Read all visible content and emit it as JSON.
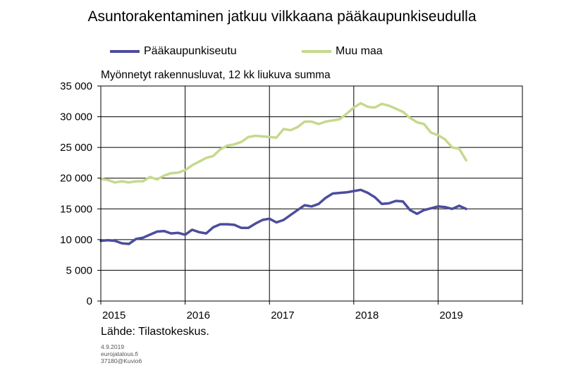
{
  "title": "Asuntorakentaminen jatkuu vilkkaana pääkaupunkiseudulla",
  "legend": [
    {
      "label": "Pääkaupunkiseutu",
      "color": "#4b4d9c"
    },
    {
      "label": "Muu maa",
      "color": "#c5d98d"
    }
  ],
  "subtitle": "Myönnetyt rakennusluvat, 12 kk liukuva summa",
  "source": "Lähde: Tilastokeskus.",
  "meta": {
    "date": "4.9.2019",
    "site": "eurojatalous.fi",
    "code": "37180@Kuvio6"
  },
  "chart_data": {
    "type": "line",
    "xlim": [
      2015.0,
      2020.0
    ],
    "ylim": [
      0,
      35000
    ],
    "x_ticks": [
      2015,
      2016,
      2017,
      2018,
      2019
    ],
    "y_ticks": [
      "0",
      "5 000",
      "10 000",
      "15 000",
      "20 000",
      "25 000",
      "30 000",
      "35 000"
    ],
    "grid": true,
    "legend_position": "top",
    "x": [
      2015.0,
      2015.083,
      2015.167,
      2015.25,
      2015.333,
      2015.417,
      2015.5,
      2015.583,
      2015.667,
      2015.75,
      2015.833,
      2015.917,
      2016.0,
      2016.083,
      2016.167,
      2016.25,
      2016.333,
      2016.417,
      2016.5,
      2016.583,
      2016.667,
      2016.75,
      2016.833,
      2016.917,
      2017.0,
      2017.083,
      2017.167,
      2017.25,
      2017.333,
      2017.417,
      2017.5,
      2017.583,
      2017.667,
      2017.75,
      2017.833,
      2017.917,
      2018.0,
      2018.083,
      2018.167,
      2018.25,
      2018.333,
      2018.417,
      2018.5,
      2018.583,
      2018.667,
      2018.75,
      2018.833,
      2018.917,
      2019.0,
      2019.083,
      2019.167,
      2019.25,
      2019.333
    ],
    "series": [
      {
        "name": "Pääkaupunkiseutu",
        "color": "#4b4d9c",
        "values": [
          9800,
          9900,
          9800,
          9400,
          9300,
          10100,
          10300,
          10800,
          11300,
          11400,
          11000,
          11100,
          10800,
          11600,
          11200,
          11000,
          12000,
          12500,
          12500,
          12400,
          11900,
          11900,
          12600,
          13200,
          13400,
          12800,
          13200,
          14000,
          14800,
          15600,
          15400,
          15800,
          16800,
          17500,
          17600,
          17700,
          17900,
          18100,
          17600,
          16900,
          15800,
          15900,
          16300,
          16200,
          14800,
          14200,
          14800,
          15100,
          15400,
          15300,
          15000,
          15500,
          15000
        ]
      },
      {
        "name": "Muu maa",
        "color": "#c5d98d",
        "values": [
          19900,
          19700,
          19300,
          19500,
          19300,
          19500,
          19500,
          20200,
          19800,
          20400,
          20800,
          20900,
          21300,
          22100,
          22700,
          23300,
          23600,
          24700,
          25300,
          25500,
          25900,
          26700,
          26900,
          26800,
          26700,
          26600,
          28000,
          27800,
          28300,
          29200,
          29200,
          28800,
          29200,
          29400,
          29600,
          30500,
          31500,
          32200,
          31600,
          31500,
          32100,
          31800,
          31300,
          30800,
          29800,
          29100,
          28800,
          27400,
          27000,
          26300,
          25000,
          24800,
          22900
        ]
      }
    ]
  }
}
